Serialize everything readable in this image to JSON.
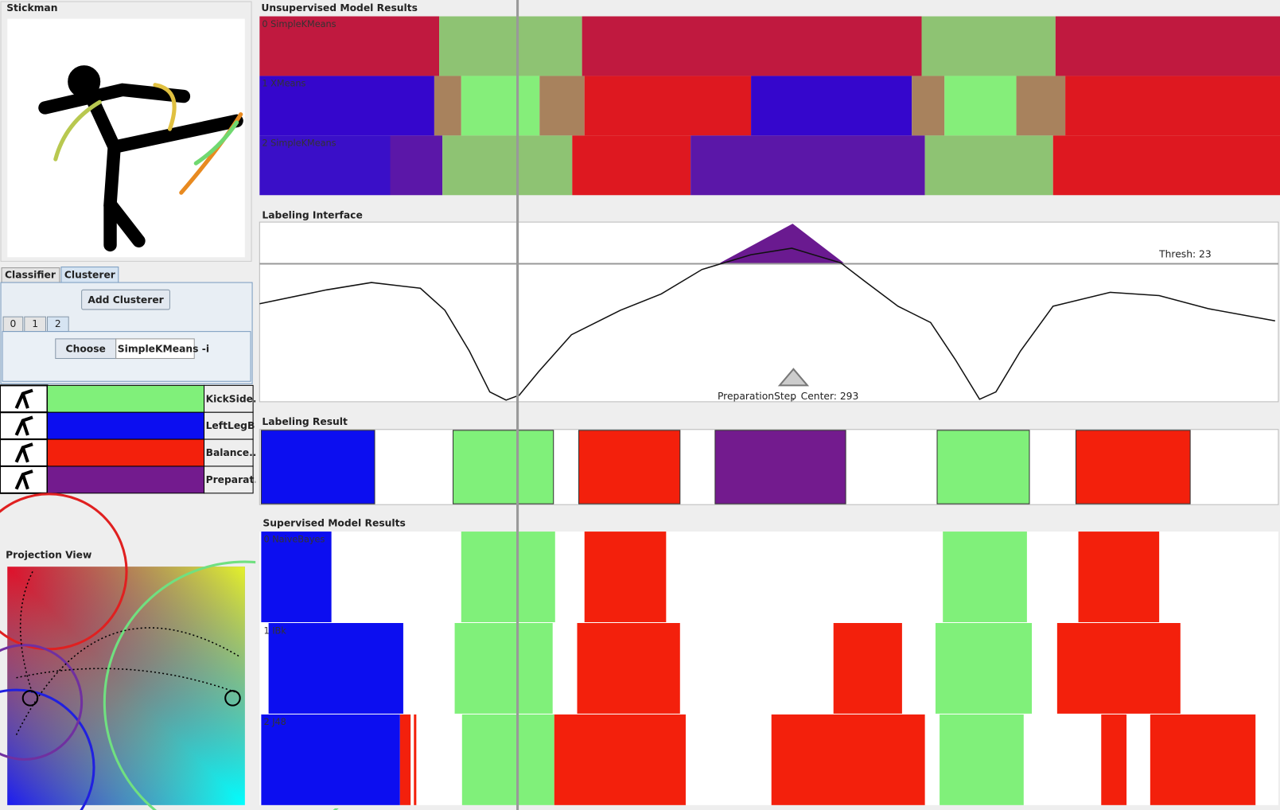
{
  "stickman_panel": {
    "title": "Stickman"
  },
  "tabs": [
    "Classifier",
    "Clusterer"
  ],
  "clusterer": {
    "add_button": "Add Clusterer",
    "subtabs": [
      "0",
      "1",
      "2"
    ],
    "choose_button": "Choose",
    "algorithm": "SimpleKMeans -i"
  },
  "labels": [
    {
      "name": "KickSide...",
      "color": "#80f07a"
    },
    {
      "name": "LeftLegB...",
      "color": "#0c0ef0"
    },
    {
      "name": "Balance...",
      "color": "#f3200c"
    },
    {
      "name": "Preparat...",
      "color": "#731b8e"
    }
  ],
  "projection_view": {
    "title": "Projection View"
  },
  "unsupervised": {
    "title": "Unsupervised Model Results",
    "models": [
      "0 SimpleKMeans",
      "1 XMeans",
      "2 SimpleKMeans"
    ]
  },
  "labeling_interface": {
    "title": "Labeling Interface",
    "threshold": "Thresh: 23",
    "marker_label": "PreparationStep",
    "separator": ",",
    "center": "Center: 293"
  },
  "labeling_result": {
    "title": "Labeling Result"
  },
  "supervised": {
    "title": "Supervised Model Results",
    "models": [
      "0 NaiveBayes",
      "1 IBk",
      "2 J48"
    ]
  }
}
